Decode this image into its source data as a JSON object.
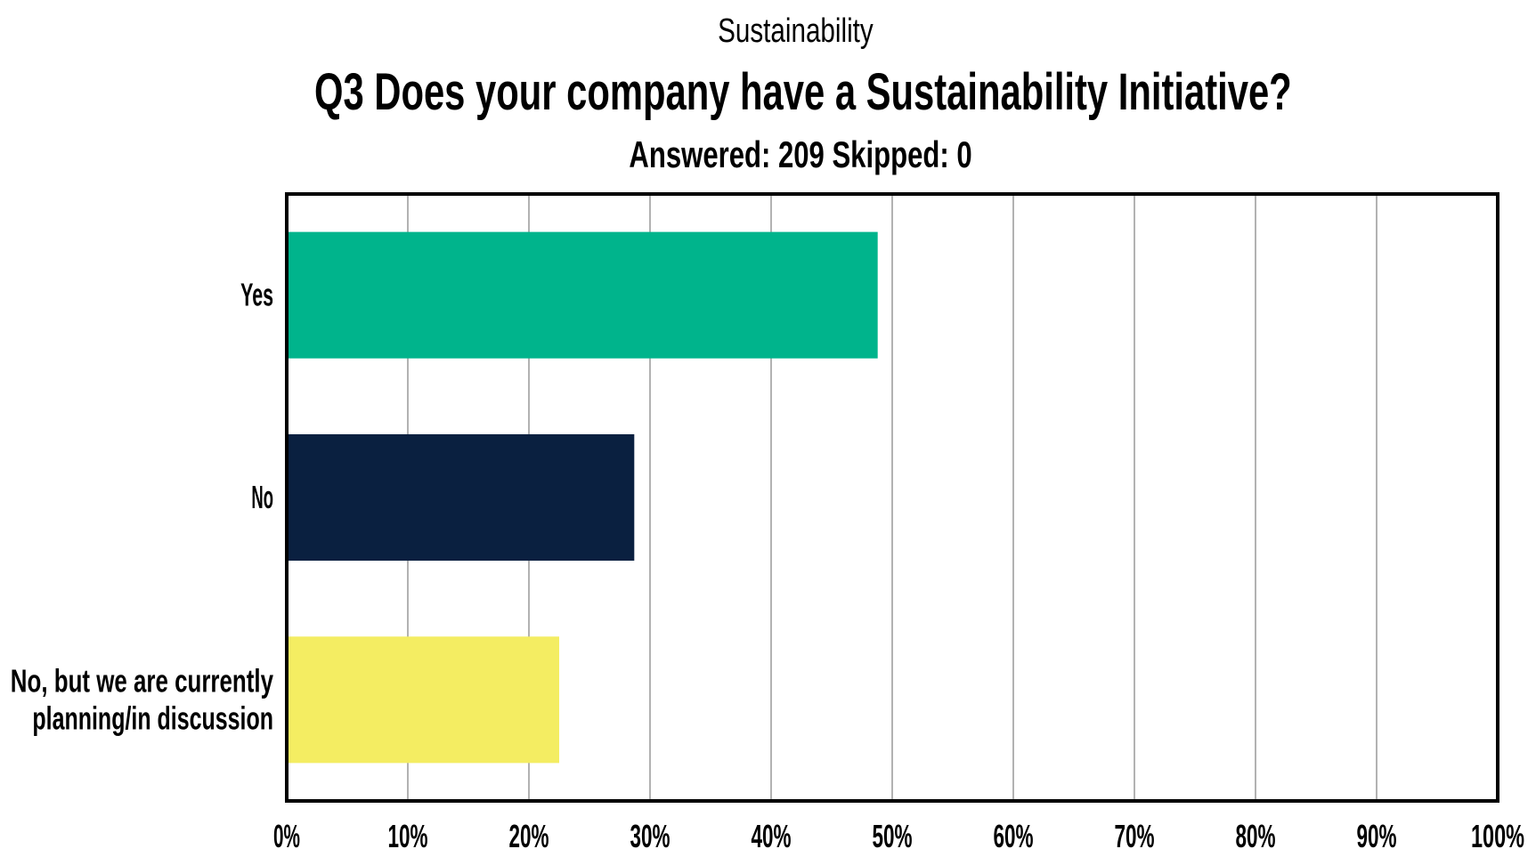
{
  "chart_data": {
    "type": "bar",
    "orientation": "horizontal",
    "supertitle": "Sustainability",
    "title": "Q3 Does your company have a Sustainability Initiative?",
    "subtitle": "Answered: 209 Skipped: 0",
    "categories": [
      [
        "Yes"
      ],
      [
        "No"
      ],
      [
        "No, but we are currently",
        "planning/in discussion"
      ]
    ],
    "values": [
      48.8,
      28.7,
      22.5
    ],
    "colors": [
      "#00b48c",
      "#0a2040",
      "#f4ed62"
    ],
    "xlim": [
      0,
      100
    ],
    "xticks": [
      "0%",
      "10%",
      "20%",
      "30%",
      "40%",
      "50%",
      "60%",
      "70%",
      "80%",
      "90%",
      "100%"
    ],
    "grid": true,
    "legend": "none"
  }
}
